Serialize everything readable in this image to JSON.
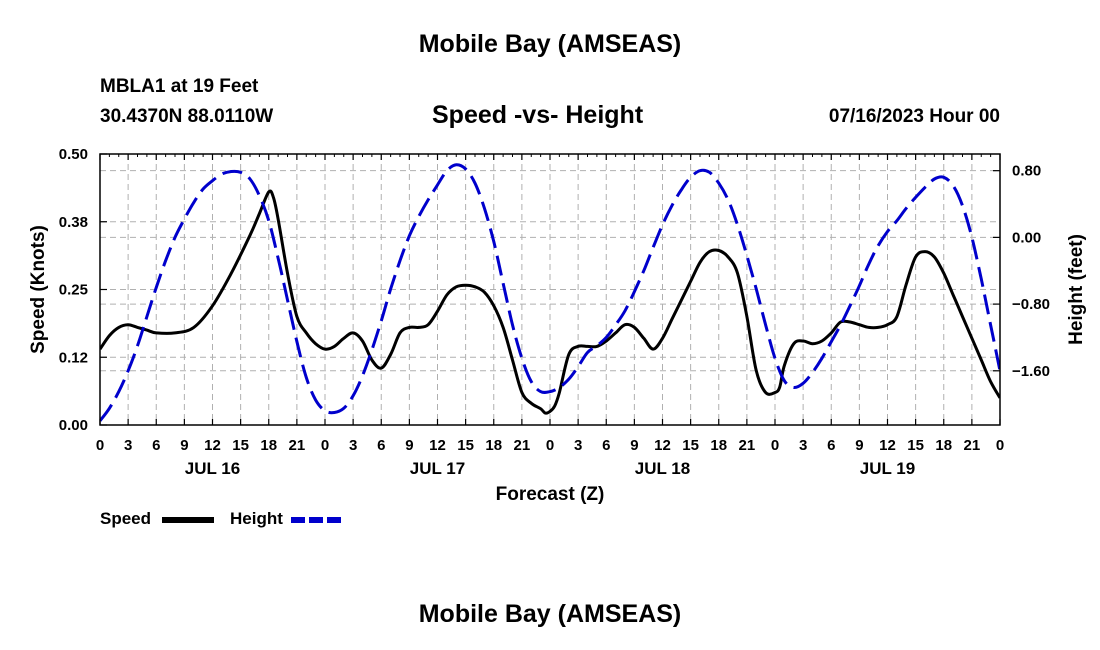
{
  "header": {
    "title": "Mobile Bay (AMSEAS)",
    "station": "MBLA1 at 19 Feet",
    "coords": "30.4370N  88.0110W",
    "subtitle": "Speed -vs- Height",
    "datetime": "07/16/2023 Hour 00"
  },
  "footer": {
    "title": "Mobile Bay (AMSEAS)"
  },
  "legend": {
    "speed_label": "Speed",
    "height_label": "Height"
  },
  "colors": {
    "speed": "#000000",
    "height": "#0000cc",
    "grid": "#b0b0b0"
  },
  "chart_data": {
    "type": "line",
    "title": "Speed -vs- Height",
    "xlabel": "Forecast (Z)",
    "ylabel": "Speed (Knots)",
    "y2label": "Height (feet)",
    "xlim": [
      0,
      96
    ],
    "ylim": [
      0,
      0.5
    ],
    "y2lim": [
      -2.25,
      1.0
    ],
    "x_ticks": [
      0,
      3,
      6,
      9,
      12,
      15,
      18,
      21,
      24,
      27,
      30,
      33,
      36,
      39,
      42,
      45,
      48,
      51,
      54,
      57,
      60,
      63,
      66,
      69,
      72,
      75,
      78,
      81,
      84,
      87,
      90,
      93,
      96
    ],
    "x_tick_labels": [
      "0",
      "3",
      "6",
      "9",
      "12",
      "15",
      "18",
      "21",
      "0",
      "3",
      "6",
      "9",
      "12",
      "15",
      "18",
      "21",
      "0",
      "3",
      "6",
      "9",
      "12",
      "15",
      "18",
      "21",
      "0",
      "3",
      "6",
      "9",
      "12",
      "15",
      "18",
      "21",
      "0"
    ],
    "day_labels": [
      {
        "x": 12,
        "label": "JUL 16"
      },
      {
        "x": 36,
        "label": "JUL 17"
      },
      {
        "x": 60,
        "label": "JUL 18"
      },
      {
        "x": 84,
        "label": "JUL 19"
      }
    ],
    "y_ticks": [
      0.0,
      0.125,
      0.25,
      0.375,
      0.5
    ],
    "y_tick_labels": [
      "0.00",
      "0.12",
      "0.25",
      "0.38",
      "0.50"
    ],
    "y2_ticks": [
      0.8,
      0.0,
      -0.8,
      -1.6
    ],
    "y2_tick_labels": [
      "0.80",
      "0.00",
      "−0.80",
      "−1.60"
    ],
    "grid": true,
    "legend_position": "bottom-left",
    "series": [
      {
        "name": "Speed",
        "axis": "left",
        "style": "solid",
        "x": [
          0,
          1,
          2,
          3,
          4,
          5,
          6,
          8,
          10,
          12,
          14,
          16,
          17,
          18,
          18.5,
          19,
          20,
          21,
          22,
          23,
          24,
          25,
          26,
          27,
          28,
          29,
          30,
          31,
          32,
          33,
          34,
          35,
          36,
          37,
          38,
          39,
          40,
          41,
          42,
          43,
          44,
          45,
          46,
          47,
          47.5,
          48,
          48.5,
          49,
          50,
          51,
          52,
          53,
          54,
          55,
          56,
          57,
          58,
          59,
          60,
          61,
          62,
          63,
          64,
          65,
          66,
          67,
          68,
          69,
          70,
          71,
          72,
          72.5,
          73,
          74,
          75,
          76,
          77,
          78,
          79,
          80,
          81,
          82,
          83,
          84,
          85,
          86,
          87,
          88,
          89,
          90,
          91,
          92,
          93,
          94,
          95,
          96
        ],
        "y": [
          0.14,
          0.165,
          0.18,
          0.185,
          0.18,
          0.175,
          0.17,
          0.17,
          0.18,
          0.22,
          0.28,
          0.35,
          0.39,
          0.43,
          0.42,
          0.38,
          0.28,
          0.2,
          0.17,
          0.15,
          0.14,
          0.145,
          0.16,
          0.17,
          0.155,
          0.12,
          0.105,
          0.13,
          0.17,
          0.18,
          0.18,
          0.185,
          0.21,
          0.24,
          0.255,
          0.258,
          0.255,
          0.245,
          0.22,
          0.18,
          0.12,
          0.06,
          0.04,
          0.03,
          0.022,
          0.025,
          0.035,
          0.06,
          0.13,
          0.145,
          0.145,
          0.145,
          0.155,
          0.17,
          0.185,
          0.18,
          0.16,
          0.14,
          0.16,
          0.195,
          0.23,
          0.265,
          0.3,
          0.32,
          0.322,
          0.31,
          0.28,
          0.2,
          0.1,
          0.06,
          0.06,
          0.07,
          0.11,
          0.15,
          0.155,
          0.15,
          0.155,
          0.17,
          0.19,
          0.19,
          0.185,
          0.18,
          0.18,
          0.185,
          0.2,
          0.26,
          0.31,
          0.32,
          0.31,
          0.28,
          0.24,
          0.2,
          0.16,
          0.12,
          0.08,
          0.05
        ]
      },
      {
        "name": "Height",
        "axis": "right",
        "style": "dashed",
        "x": [
          0,
          1,
          2,
          3,
          4,
          5,
          6,
          7,
          8,
          9,
          10,
          11,
          12,
          13,
          14,
          15,
          16,
          17,
          18,
          19,
          20,
          21,
          22,
          23,
          24,
          25,
          26,
          27,
          28,
          29,
          30,
          31,
          32,
          33,
          34,
          35,
          36,
          37,
          38,
          39,
          40,
          41,
          42,
          43,
          44,
          45,
          46,
          47,
          48,
          49,
          50,
          51,
          52,
          53,
          54,
          55,
          56,
          57,
          58,
          59,
          60,
          61,
          62,
          63,
          64,
          65,
          66,
          67,
          68,
          69,
          70,
          71,
          72,
          73,
          74,
          75,
          76,
          77,
          78,
          79,
          80,
          81,
          82,
          83,
          84,
          85,
          86,
          87,
          88,
          89,
          90,
          91,
          92,
          93,
          94,
          95,
          96
        ],
        "y": [
          -2.2,
          -2.05,
          -1.85,
          -1.6,
          -1.3,
          -0.95,
          -0.6,
          -0.28,
          0.0,
          0.22,
          0.42,
          0.58,
          0.68,
          0.76,
          0.79,
          0.78,
          0.7,
          0.5,
          0.2,
          -0.25,
          -0.75,
          -1.25,
          -1.68,
          -1.95,
          -2.08,
          -2.1,
          -2.05,
          -1.9,
          -1.66,
          -1.35,
          -1.0,
          -0.62,
          -0.28,
          0.02,
          0.25,
          0.45,
          0.63,
          0.8,
          0.87,
          0.82,
          0.65,
          0.35,
          -0.05,
          -0.55,
          -1.05,
          -1.45,
          -1.73,
          -1.85,
          -1.85,
          -1.8,
          -1.7,
          -1.55,
          -1.38,
          -1.3,
          -1.2,
          -1.05,
          -0.88,
          -0.65,
          -0.4,
          -0.12,
          0.15,
          0.38,
          0.57,
          0.72,
          0.8,
          0.78,
          0.65,
          0.45,
          0.15,
          -0.22,
          -0.62,
          -1.05,
          -1.45,
          -1.72,
          -1.8,
          -1.75,
          -1.62,
          -1.45,
          -1.25,
          -1.05,
          -0.82,
          -0.58,
          -0.32,
          -0.1,
          0.07,
          0.2,
          0.35,
          0.48,
          0.6,
          0.7,
          0.72,
          0.62,
          0.38,
          0.0,
          -0.5,
          -1.05,
          -1.6
        ]
      }
    ]
  }
}
